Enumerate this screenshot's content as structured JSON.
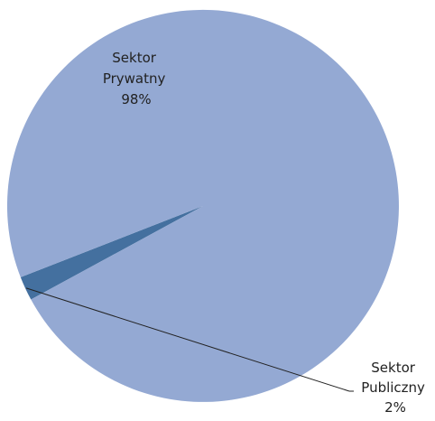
{
  "chart_data": {
    "type": "pie",
    "title": "",
    "slices": [
      {
        "label_lines": [
          "Sektor",
          "Prywatny",
          "98%"
        ],
        "percent": 98,
        "color": "#94A9D3"
      },
      {
        "label_lines": [
          "Sektor",
          "Publiczny",
          "2%"
        ],
        "percent": 2,
        "color": "#44709F"
      }
    ],
    "legend": "none",
    "data_labels": "on"
  }
}
